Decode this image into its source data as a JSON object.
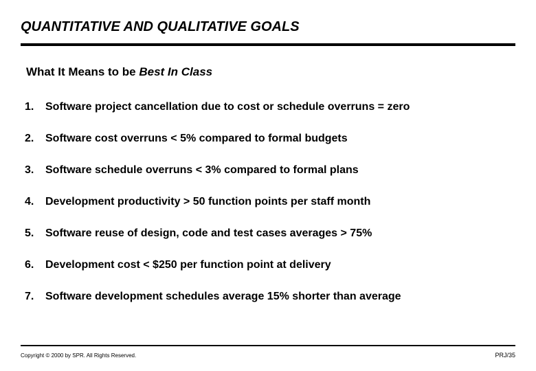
{
  "title": "QUANTITATIVE AND QUALITATIVE GOALS",
  "subtitle_prefix": "What It Means to be ",
  "subtitle_emph": "Best In Class",
  "items": [
    {
      "num": "1.",
      "text": "Software project cancellation due to cost or schedule overruns = zero"
    },
    {
      "num": "2.",
      "text": "Software cost overruns < 5% compared to formal budgets"
    },
    {
      "num": "3.",
      "text": "Software schedule overruns < 3% compared to formal plans"
    },
    {
      "num": "4.",
      "text": "Development productivity > 50 function points per staff month"
    },
    {
      "num": "5.",
      "text": "Software reuse of design, code and test cases averages > 75%"
    },
    {
      "num": "6.",
      "text": "Development cost  < $250 per function point at delivery"
    },
    {
      "num": "7.",
      "text": "Software development schedules average 15% shorter than average"
    }
  ],
  "footer_left": "Copyright © 2000 by SPR. All Rights Reserved.",
  "footer_right": "PRJ/35",
  "colors": {
    "background": "#ffffff",
    "text": "#000000",
    "rule": "#000000"
  },
  "typography": {
    "title_fontsize": 20,
    "subtitle_fontsize": 17,
    "item_fontsize": 16,
    "footer_fontsize": 8
  }
}
